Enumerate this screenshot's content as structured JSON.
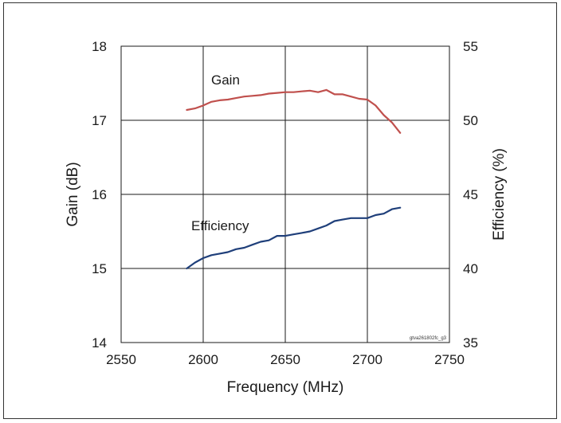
{
  "chart_data": {
    "type": "line",
    "xlabel": "Frequency (MHz)",
    "ylabel_left": "Gain (dB)",
    "ylabel_right": "Efficiency (%)",
    "xlim": [
      2550,
      2750
    ],
    "ylim_left": [
      14,
      18
    ],
    "ylim_right": [
      35,
      55
    ],
    "x_ticks": [
      "2550",
      "2600",
      "2650",
      "2700",
      "2750"
    ],
    "y_left_ticks": [
      "14",
      "15",
      "16",
      "17",
      "18"
    ],
    "y_right_ticks": [
      "35",
      "40",
      "45",
      "50",
      "55"
    ],
    "grid": true,
    "reference": "gtva261802fc_g3",
    "series": [
      {
        "name": "Gain",
        "axis": "left",
        "color": "#c0504d",
        "x": [
          2590,
          2595,
          2600,
          2605,
          2610,
          2615,
          2620,
          2625,
          2630,
          2635,
          2640,
          2645,
          2650,
          2655,
          2660,
          2665,
          2670,
          2675,
          2680,
          2685,
          2690,
          2695,
          2700,
          2705,
          2710,
          2715,
          2720
        ],
        "y": [
          17.14,
          17.16,
          17.2,
          17.25,
          17.27,
          17.28,
          17.3,
          17.32,
          17.33,
          17.34,
          17.36,
          17.37,
          17.38,
          17.38,
          17.39,
          17.4,
          17.38,
          17.41,
          17.35,
          17.35,
          17.32,
          17.29,
          17.28,
          17.2,
          17.07,
          16.97,
          16.83
        ]
      },
      {
        "name": "Efficiency",
        "axis": "right",
        "color": "#1f3f7a",
        "x": [
          2590,
          2595,
          2600,
          2605,
          2610,
          2615,
          2620,
          2625,
          2630,
          2635,
          2640,
          2645,
          2650,
          2655,
          2660,
          2665,
          2670,
          2675,
          2680,
          2685,
          2690,
          2695,
          2700,
          2705,
          2710,
          2715,
          2720
        ],
        "y": [
          40.0,
          40.4,
          40.7,
          40.9,
          41.0,
          41.1,
          41.3,
          41.4,
          41.6,
          41.8,
          41.9,
          42.2,
          42.2,
          42.3,
          42.4,
          42.5,
          42.7,
          42.9,
          43.2,
          43.3,
          43.4,
          43.4,
          43.4,
          43.6,
          43.7,
          44.0,
          44.1
        ]
      }
    ],
    "annotations": [
      {
        "text": "Gain",
        "series": "Gain"
      },
      {
        "text": "Efficiency",
        "series": "Efficiency"
      }
    ]
  }
}
